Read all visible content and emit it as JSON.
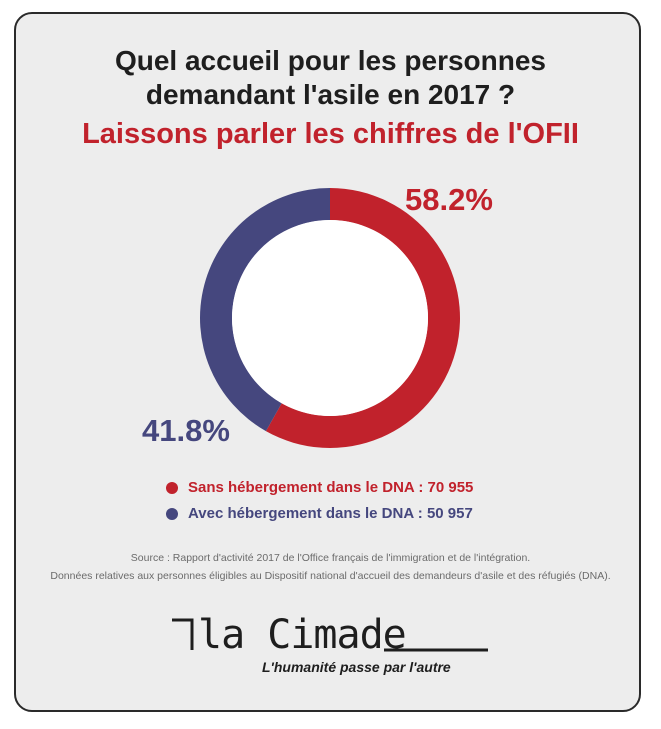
{
  "header": {
    "title_line1": "Quel accueil pour les personnes",
    "title_line2": "demandant l'asile en 2017 ?",
    "subtitle": "Laissons parler les chiffres de l'OFII"
  },
  "chart_data": {
    "type": "pie",
    "categories": [
      "Sans hébergement dans le DNA",
      "Avec hébergement dans le DNA"
    ],
    "values": [
      70955,
      50957
    ],
    "percent_labels": [
      "58.2%",
      "41.8%"
    ],
    "colors": [
      "#c1222c",
      "#45477e"
    ],
    "legend_placement": "bottom",
    "donut": true
  },
  "legend": {
    "items": [
      {
        "label": "Sans hébergement dans le DNA : 70 955",
        "color": "#c1222c"
      },
      {
        "label": "Avec hébergement dans le DNA : 50 957",
        "color": "#45477e"
      }
    ]
  },
  "source": {
    "line1": "Source : Rapport d'activité 2017 de l'Office français de l'immigration et de l'intégration.",
    "line2": "Données relatives aux personnes éligibles au Dispositif national d'accueil des demandeurs d'asile et des réfugiés (DNA)."
  },
  "logo": {
    "name": "la Cimade",
    "tagline": "L'humanité passe par l'autre"
  },
  "colors": {
    "red": "#c1222c",
    "blue": "#45477e",
    "dark": "#1e1e1e"
  }
}
